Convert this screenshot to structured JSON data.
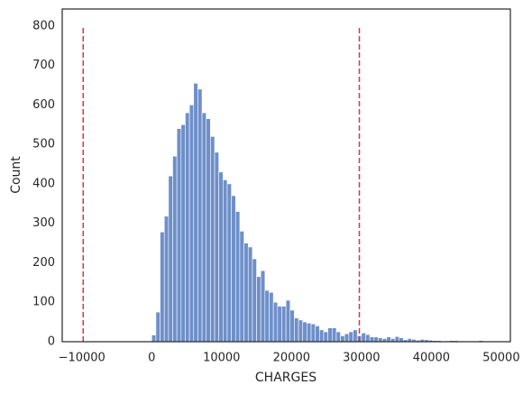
{
  "chart_data": {
    "type": "histogram",
    "xlabel": "CHARGES",
    "ylabel": "Count",
    "color": "#6e8fc9",
    "bins": [
      0,
      600,
      1200,
      1800,
      2400,
      3000,
      3600,
      4200,
      4800,
      5400,
      6000,
      6600,
      7200,
      7800,
      8400,
      9000,
      9600,
      10200,
      10800,
      11400,
      12000,
      12600,
      13200,
      13800,
      14400,
      15000,
      15600,
      16200,
      16800,
      17400,
      18000,
      18600,
      19200,
      19800,
      20400,
      21000,
      21600,
      22200,
      22800,
      23400,
      24000,
      24600,
      25200,
      25800,
      26400,
      27000,
      27600,
      28200,
      28800,
      29400,
      30000,
      30600,
      31200,
      31800,
      32400,
      33000,
      33600,
      34200,
      34800,
      35400,
      36000,
      36600,
      37200,
      37800,
      38400,
      39000,
      39600,
      40200,
      40800,
      41400,
      42000,
      42600,
      43200,
      43800,
      44400,
      45000,
      45600,
      46200,
      46800,
      47400,
      48000
    ],
    "values": [
      17,
      75,
      278,
      318,
      420,
      470,
      540,
      550,
      580,
      600,
      655,
      640,
      580,
      565,
      520,
      480,
      430,
      410,
      400,
      370,
      330,
      280,
      250,
      240,
      210,
      165,
      180,
      130,
      125,
      100,
      90,
      90,
      105,
      80,
      60,
      55,
      50,
      47,
      45,
      40,
      30,
      25,
      35,
      35,
      25,
      15,
      20,
      25,
      30,
      15,
      22,
      18,
      12,
      12,
      10,
      8,
      12,
      8,
      13,
      10,
      5,
      8,
      6,
      4,
      6,
      5,
      4,
      3,
      3,
      2,
      2,
      3,
      3,
      2,
      1,
      2,
      1,
      1,
      3,
      1
    ],
    "vlines": {
      "x": [
        -9800,
        29700
      ],
      "ymin": 0,
      "ymax": 800,
      "color": "#d9383a"
    },
    "xlim": [
      -12800,
      51300
    ],
    "ylim": [
      0,
      843
    ],
    "xticks": [
      {
        "value": -10000,
        "label": "−10000"
      },
      0,
      10000,
      20000,
      30000,
      40000,
      50000
    ],
    "yticks": [
      0,
      100,
      200,
      300,
      400,
      500,
      600,
      700,
      800
    ]
  }
}
